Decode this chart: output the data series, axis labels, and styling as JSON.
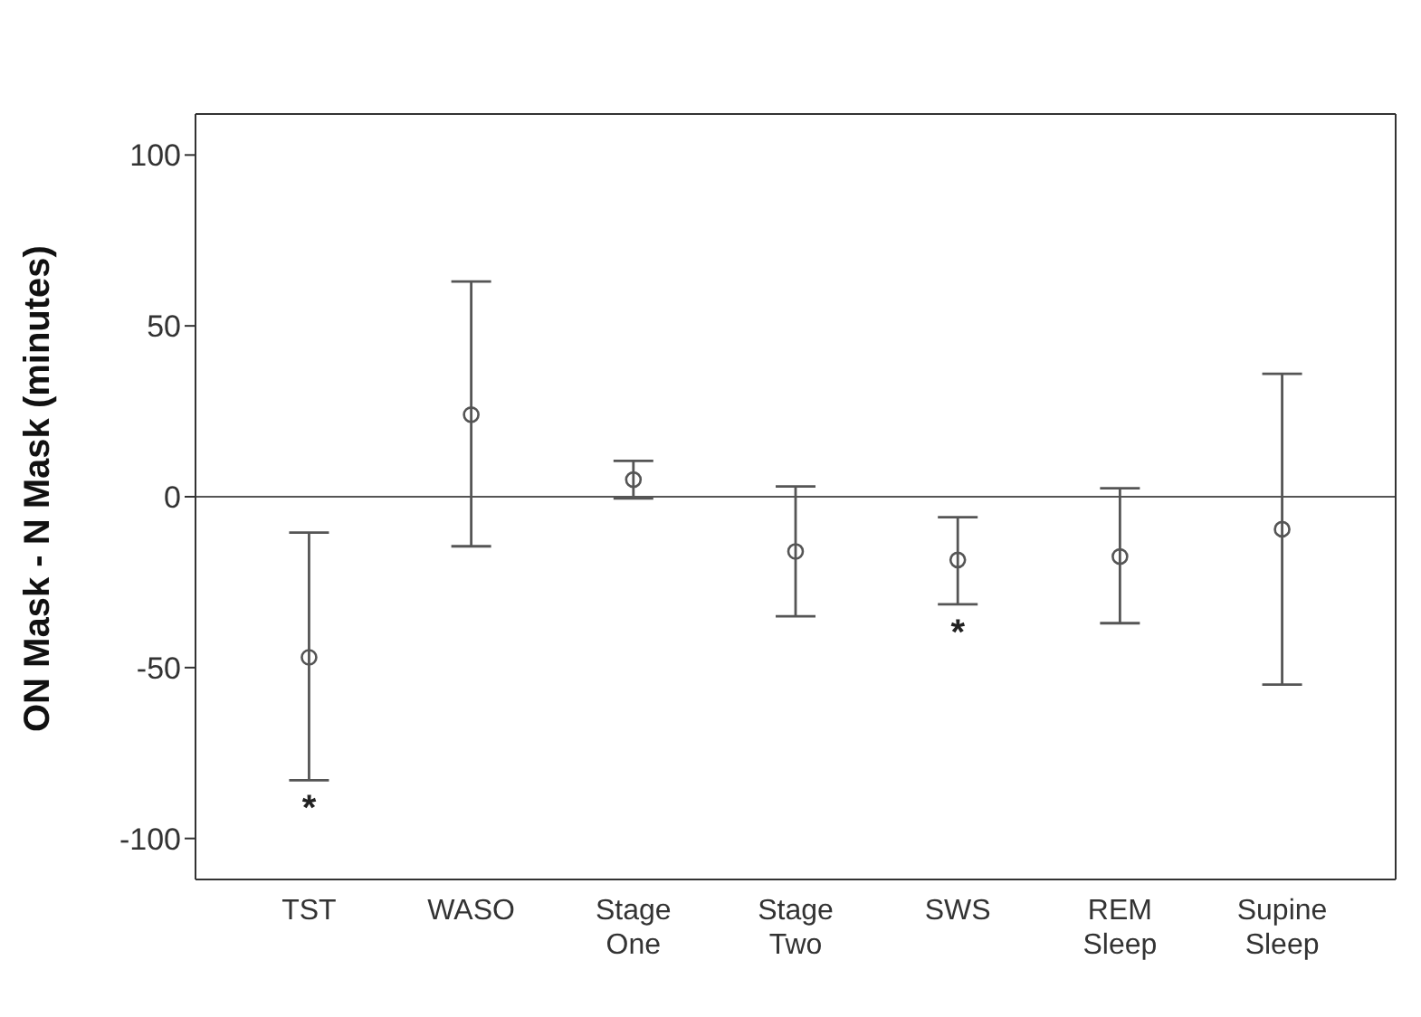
{
  "chart_data": {
    "type": "scatter",
    "ylabel": "ON Mask - N Mask (minutes)",
    "categories": [
      "TST",
      "WASO",
      "Stage One",
      "Stage Two",
      "SWS",
      "REM Sleep",
      "Supine Sleep"
    ],
    "values": [
      -47,
      24,
      5,
      -16,
      -18.5,
      -17.5,
      -9.5
    ],
    "errors": [
      [
        -83,
        -10.5
      ],
      [
        -14.5,
        63
      ],
      [
        -0.5,
        10.5
      ],
      [
        -35,
        3
      ],
      [
        -31.5,
        -6
      ],
      [
        -37,
        2.5
      ],
      [
        -55,
        36
      ]
    ],
    "color": "#555555",
    "marker": "circle",
    "ylim": [
      -112,
      112
    ],
    "yticks": [
      -100,
      -50,
      0,
      50,
      100
    ],
    "ref_lines": [
      {
        "axis": "y",
        "value": 0,
        "color": "#555555"
      }
    ],
    "annotations": [
      "*",
      "*"
    ],
    "grid": false,
    "legend": false
  }
}
